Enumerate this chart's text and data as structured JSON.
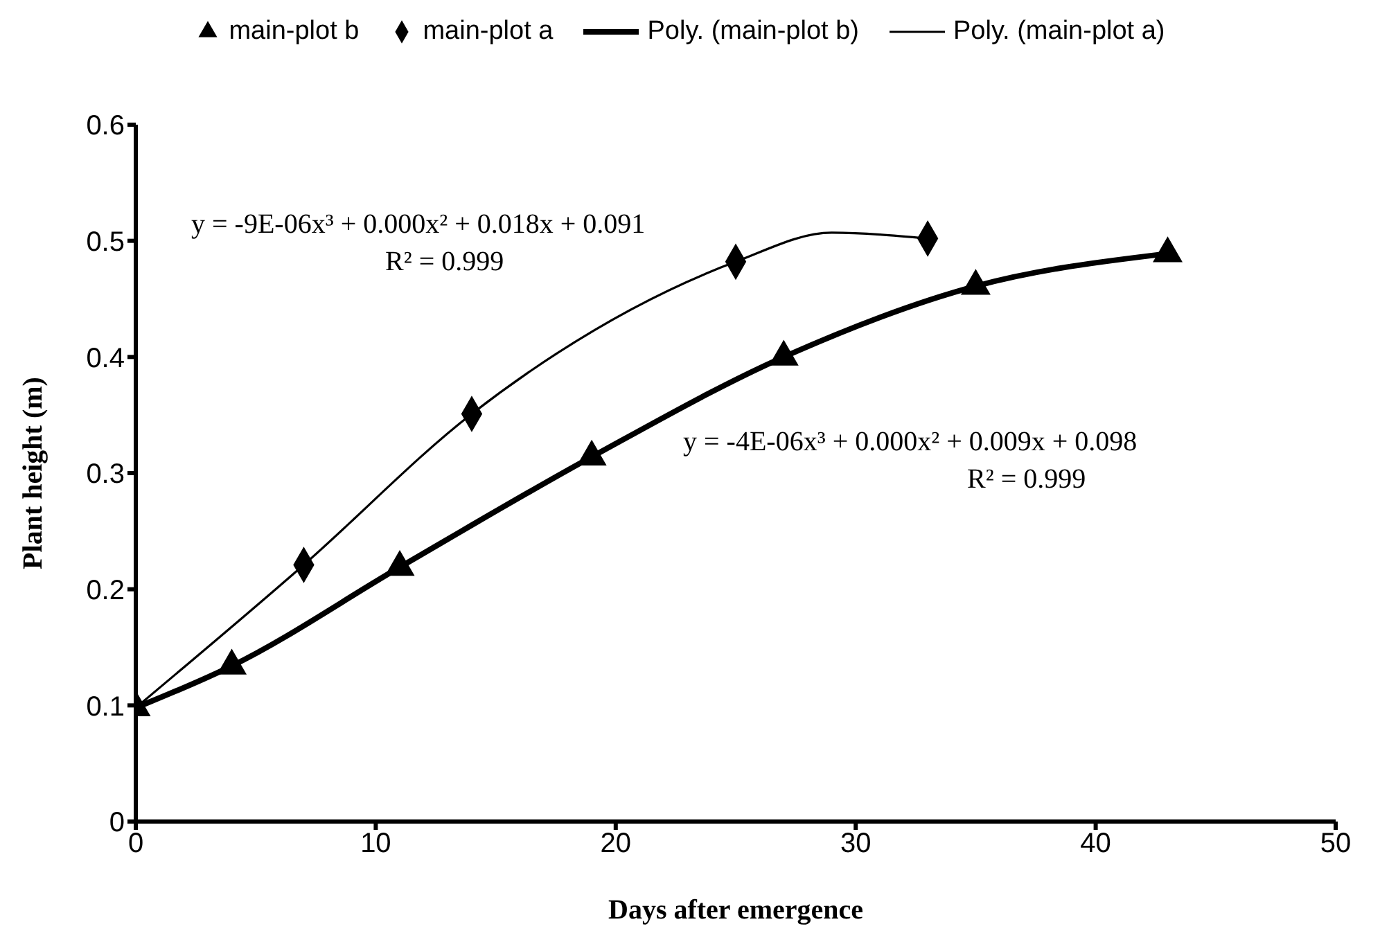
{
  "chart_data": {
    "type": "scatter",
    "xlabel": "Days after emergence",
    "ylabel": "Plant height (m)",
    "xlim": [
      0,
      50
    ],
    "xticks": [
      0,
      10,
      20,
      30,
      40,
      50
    ],
    "ylim": [
      0,
      0.6
    ],
    "yticks": [
      0,
      0.1,
      0.2,
      0.3,
      0.4,
      0.5,
      0.6
    ],
    "grid": false,
    "legend": "top",
    "series": [
      {
        "name": "main-plot b",
        "type": "scatter",
        "marker": "triangle",
        "color": "#000000",
        "x": [
          0,
          4,
          11,
          19,
          27,
          35,
          43
        ],
        "values": [
          0.098,
          0.134,
          0.219,
          0.314,
          0.4,
          0.461,
          0.489
        ]
      },
      {
        "name": "main-plot a",
        "type": "scatter",
        "marker": "diamond",
        "color": "#000000",
        "x": [
          7,
          14,
          25,
          33
        ],
        "values": [
          0.221,
          0.351,
          0.482,
          0.502
        ]
      },
      {
        "name": "Poly. (main-plot b)",
        "type": "line",
        "marker": "none",
        "line_style": "solid",
        "color": "#000000",
        "x": [
          0,
          4,
          11,
          19,
          27,
          35,
          43
        ],
        "values": [
          0.098,
          0.134,
          0.219,
          0.314,
          0.4,
          0.461,
          0.489
        ]
      },
      {
        "name": "Poly. (main-plot a)",
        "type": "line",
        "marker": "none",
        "line_style": "solid",
        "color": "#000000",
        "x": [
          0,
          7,
          14,
          25,
          29,
          33
        ],
        "values": [
          0.098,
          0.221,
          0.351,
          0.482,
          0.507,
          0.502
        ]
      }
    ],
    "annotations": [
      "y = -9E-06x³ + 0.000x² + 0.018x + 0.091",
      "R² = 0.999",
      "y = -4E-06x³ + 0.000x² + 0.009x + 0.098",
      "R² = 0.999"
    ]
  }
}
